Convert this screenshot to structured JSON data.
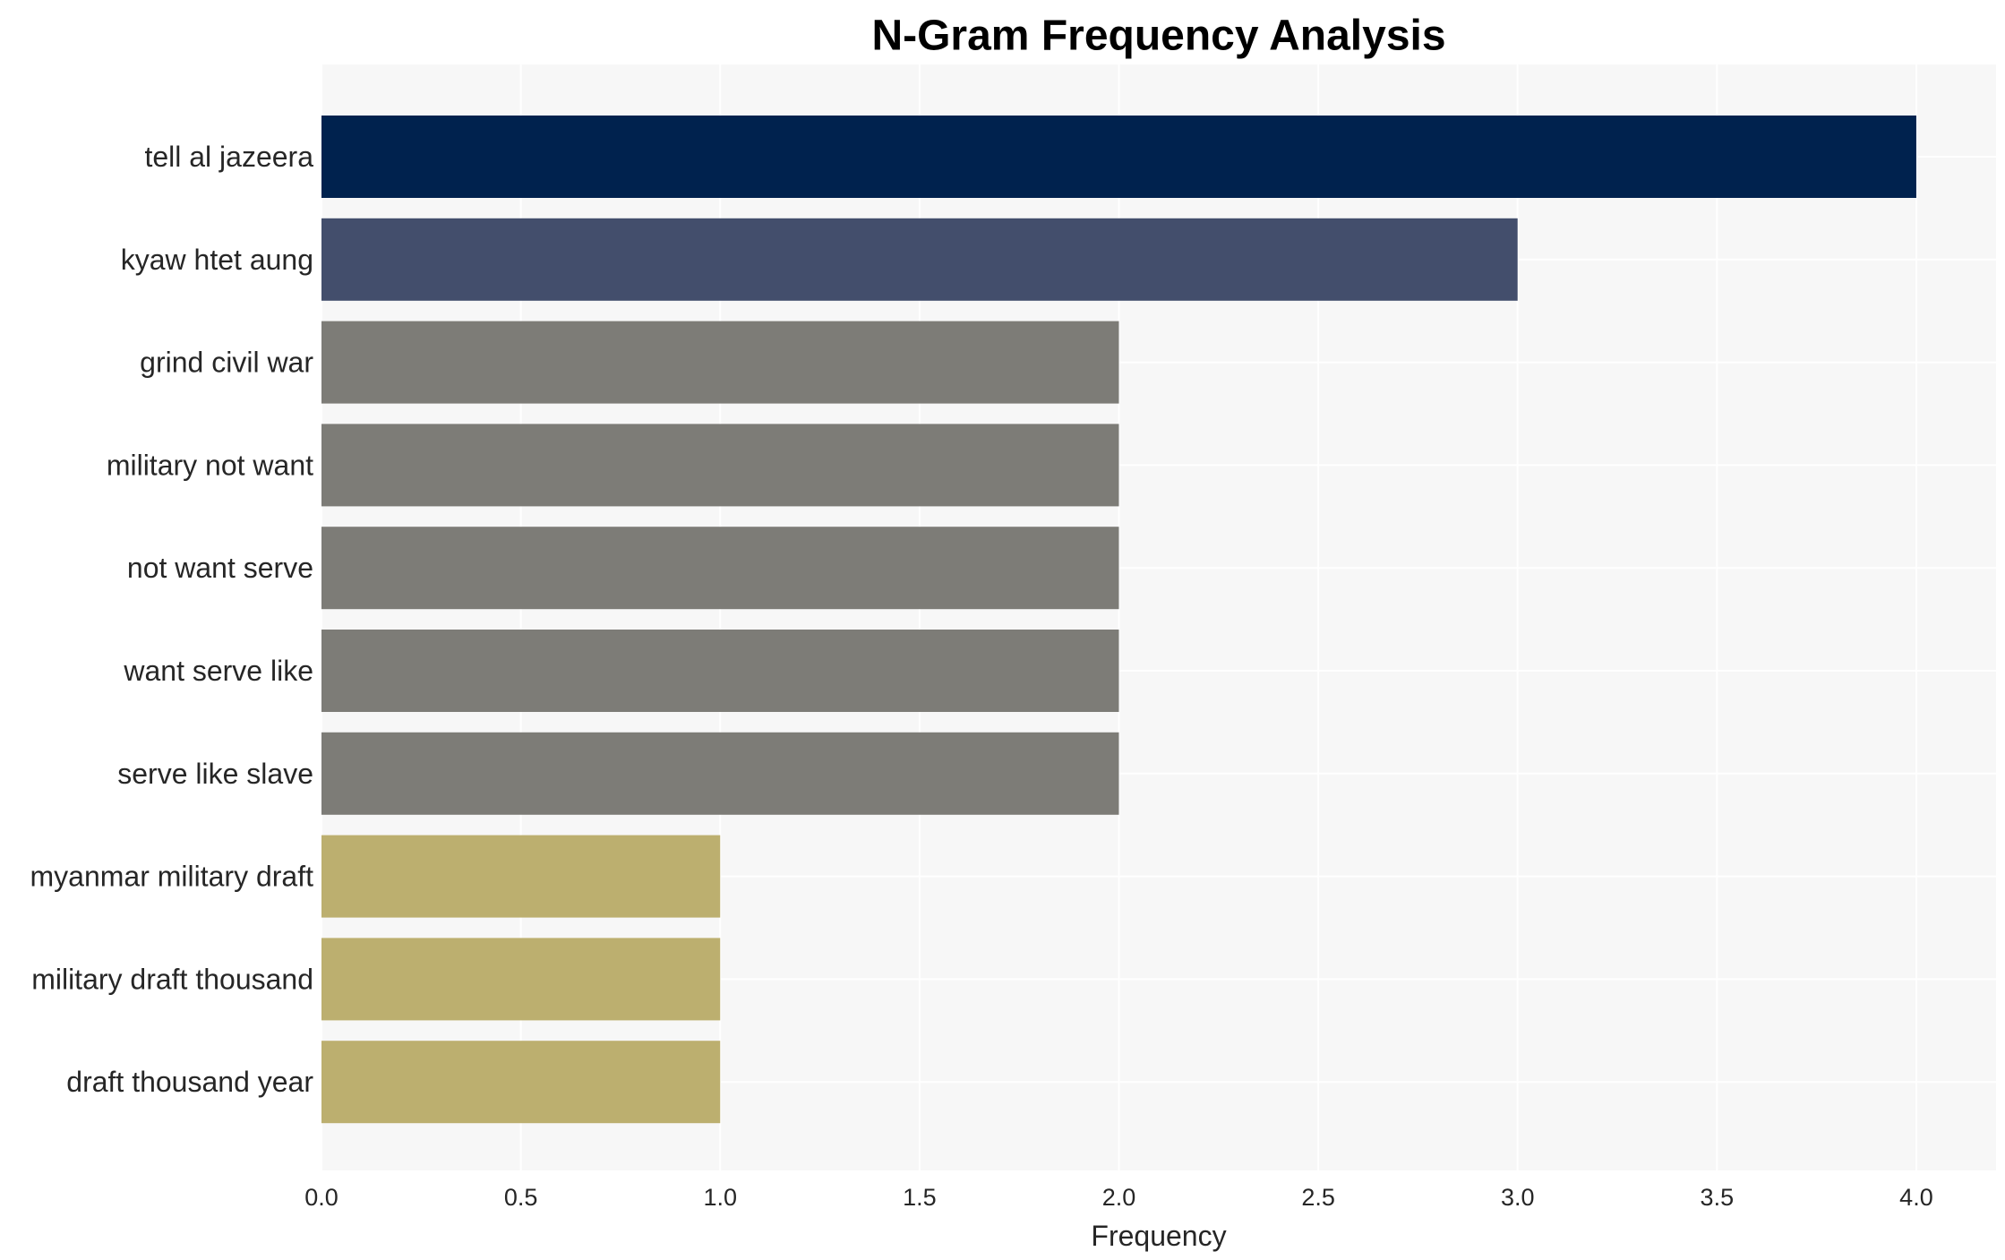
{
  "chart_data": {
    "type": "bar",
    "orientation": "horizontal",
    "title": "N-Gram Frequency Analysis",
    "xlabel": "Frequency",
    "ylabel": "",
    "xlim": [
      0.0,
      4.2
    ],
    "x_ticks": [
      "0.0",
      "0.5",
      "1.0",
      "1.5",
      "2.0",
      "2.5",
      "3.0",
      "3.5",
      "4.0"
    ],
    "grid": true,
    "categories": [
      "tell al jazeera",
      "kyaw htet aung",
      "grind civil war",
      "military not want",
      "not want serve",
      "want serve like",
      "serve like slave",
      "myanmar military draft",
      "military draft thousand",
      "draft thousand year"
    ],
    "values": [
      4,
      3,
      2,
      2,
      2,
      2,
      2,
      1,
      1,
      1
    ],
    "bar_colors": [
      "#00224e",
      "#434e6c",
      "#7d7c77",
      "#7d7c77",
      "#7d7c77",
      "#7d7c77",
      "#7d7c77",
      "#bcaf6f",
      "#bcaf6f",
      "#bcaf6f"
    ],
    "plot_background": "#f7f7f7",
    "grid_color": "#ffffff"
  }
}
